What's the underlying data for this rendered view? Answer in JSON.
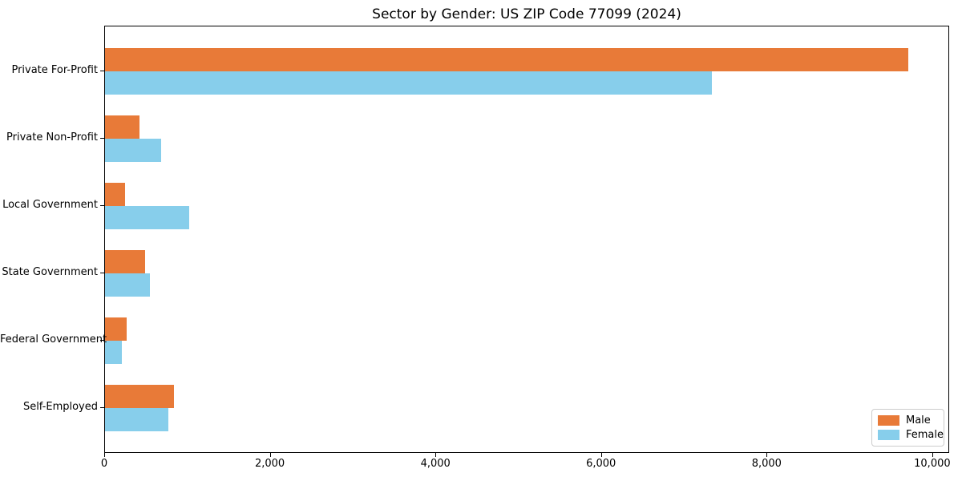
{
  "chart_data": {
    "type": "bar",
    "orientation": "horizontal",
    "title": "Sector by Gender: US ZIP Code 77099 (2024)",
    "categories": [
      "Private For-Profit",
      "Private Non-Profit",
      "Local Government",
      "State Government",
      "Federal Government",
      "Self-Employed"
    ],
    "series": [
      {
        "name": "Male",
        "color": "#E87A38",
        "values": [
          9700,
          415,
          240,
          480,
          260,
          830
        ]
      },
      {
        "name": "Female",
        "color": "#87CEEB",
        "values": [
          7330,
          675,
          1020,
          540,
          200,
          760
        ]
      }
    ],
    "xlabel": "",
    "ylabel": "",
    "xlim": [
      0,
      10185
    ],
    "xticks": {
      "values": [
        0,
        2000,
        4000,
        6000,
        8000,
        10000
      ],
      "labels": [
        "0",
        "2,000",
        "4,000",
        "6,000",
        "8,000",
        "10,000"
      ]
    },
    "grid": false,
    "legend": {
      "position": "lower right",
      "entries": [
        "Male",
        "Female"
      ]
    }
  }
}
